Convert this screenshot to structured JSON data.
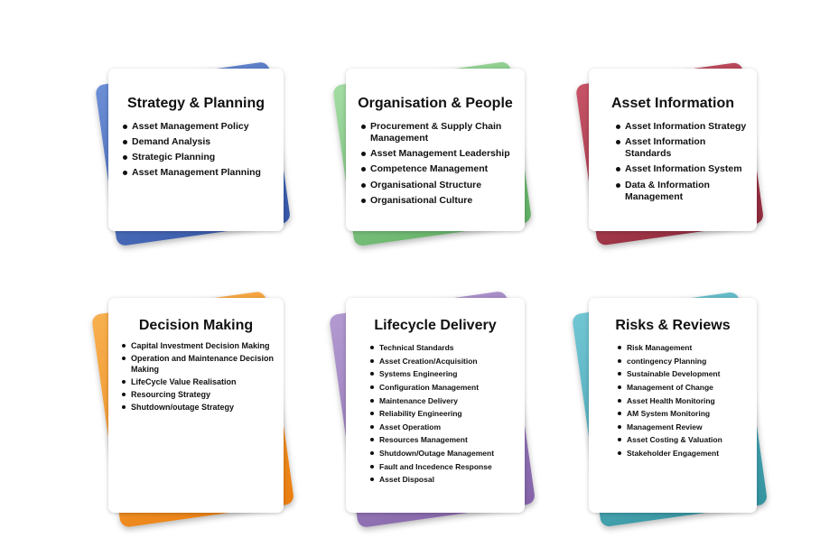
{
  "colors": {
    "strategy": "#4a6fb8",
    "organisation": "#7cc47f",
    "asset_information": "#a8384c",
    "decision": "#f0932b",
    "lifecycle": "#9c7bbd",
    "risks": "#4fb1c2"
  },
  "cards": {
    "strategy": {
      "title": "Strategy & Planning",
      "items": [
        "Asset Management Policy",
        "Demand Analysis",
        "Strategic Planning",
        "Asset Management Planning"
      ]
    },
    "organisation": {
      "title": "Organisation & People",
      "items": [
        "Procurement & Supply Chain Management",
        "Asset Management Leadership",
        "Competence Management",
        "Organisational Structure",
        "Organisational Culture"
      ]
    },
    "asset_information": {
      "title": "Asset Information",
      "items": [
        "Asset Information Strategy",
        "Asset Information Standards",
        "Asset Information System",
        "Data & Information Management"
      ]
    },
    "decision": {
      "title": "Decision Making",
      "items": [
        "Capital Investment Decision Making",
        "Operation and  Maintenance Decision Making",
        "LifeCycle Value Realisation",
        "Resourcing Strategy",
        "Shutdown/outage Strategy"
      ]
    },
    "lifecycle": {
      "title": "Lifecycle Delivery",
      "items": [
        "Technical Standards",
        "Asset Creation/Acquisition",
        "Systems Engineering",
        "Configuration Management",
        "Maintenance Delivery",
        "Reliability Engineering",
        "Asset Operatiom",
        "Resources Management",
        "Shutdown/Outage Management",
        "Fault and Incedence Response",
        "Asset Disposal"
      ]
    },
    "risks": {
      "title": "Risks & Reviews",
      "items": [
        "Risk Management",
        "contingency Planning",
        "Sustainable Development",
        "Management of Change",
        "Asset Health Monitoring",
        "AM System Monitoring",
        "Management Review",
        "Asset Costing & Valuation",
        "Stakeholder Engagement"
      ]
    }
  }
}
